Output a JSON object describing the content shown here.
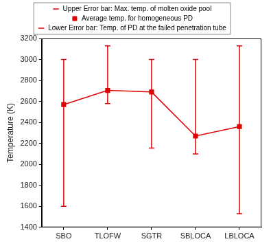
{
  "chart_data": {
    "type": "line",
    "y_label": "Temperature (K)",
    "categories": [
      "SBO",
      "TLOFW",
      "SGTR",
      "SBLOCA",
      "LBLOCA"
    ],
    "series": [
      {
        "name": "Average temp. for homogeneous PD",
        "color": "#e00000",
        "marker": "square",
        "line_style": "solid",
        "values": [
          2570,
          2705,
          2690,
          2270,
          2360
        ],
        "error_bar": {
          "upper": {
            "name": "Upper Error bar: Max. temp. of molten oxide pool",
            "values": [
              3000,
              3130,
              3000,
              3000,
              3130
            ]
          },
          "lower": {
            "name": "Lower Error bar: Temp. of PD at the failed penetration tube",
            "values": [
              1600,
              2580,
              2155,
              2100,
              1530
            ]
          }
        }
      }
    ],
    "ylim": [
      1400,
      3200
    ],
    "yticks": [
      1400,
      1600,
      1800,
      2000,
      2200,
      2400,
      2600,
      2800,
      3000,
      3200
    ],
    "grid": false,
    "legend": "top"
  }
}
